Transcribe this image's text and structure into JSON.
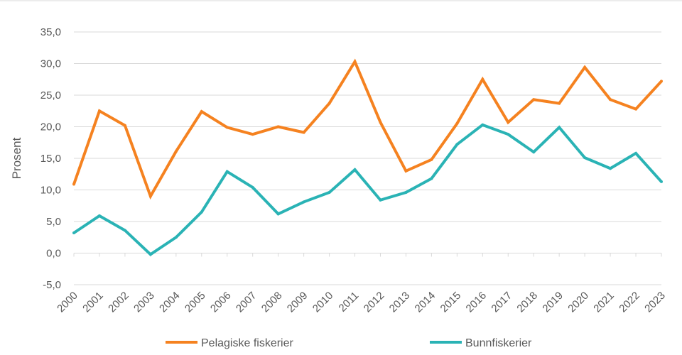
{
  "chart_data": {
    "type": "line",
    "title": "",
    "xlabel": "",
    "ylabel": "Prosent",
    "ylim": [
      -5,
      35
    ],
    "yticks": [
      "-5,0",
      "0,0",
      "5,0",
      "10,0",
      "15,0",
      "20,0",
      "25,0",
      "30,0",
      "35,0"
    ],
    "grid": true,
    "legend_position": "bottom",
    "categories": [
      "2000",
      "2001",
      "2002",
      "2003",
      "2004",
      "2005",
      "2006",
      "2007",
      "2008",
      "2009",
      "2010",
      "2011",
      "2012",
      "2013",
      "2014",
      "2015",
      "2016",
      "2017",
      "2018",
      "2019",
      "2020",
      "2021",
      "2022",
      "2023"
    ],
    "series": [
      {
        "name": "Pelagiske fiskerier",
        "color": "#F58220",
        "values": [
          10.9,
          22.5,
          20.2,
          9.0,
          16.1,
          22.4,
          19.9,
          18.8,
          20.0,
          19.1,
          23.7,
          30.3,
          20.7,
          13.0,
          14.8,
          20.5,
          27.5,
          20.7,
          24.3,
          23.7,
          29.4,
          24.3,
          22.8,
          27.2
        ]
      },
      {
        "name": "Bunnfiskerier",
        "color": "#2AB3B5",
        "values": [
          3.2,
          5.9,
          3.6,
          -0.2,
          2.5,
          6.5,
          12.9,
          10.4,
          6.2,
          8.1,
          9.6,
          13.2,
          8.4,
          9.6,
          11.8,
          17.2,
          20.3,
          18.8,
          16.0,
          19.9,
          15.1,
          13.4,
          15.8,
          11.3
        ]
      }
    ]
  }
}
